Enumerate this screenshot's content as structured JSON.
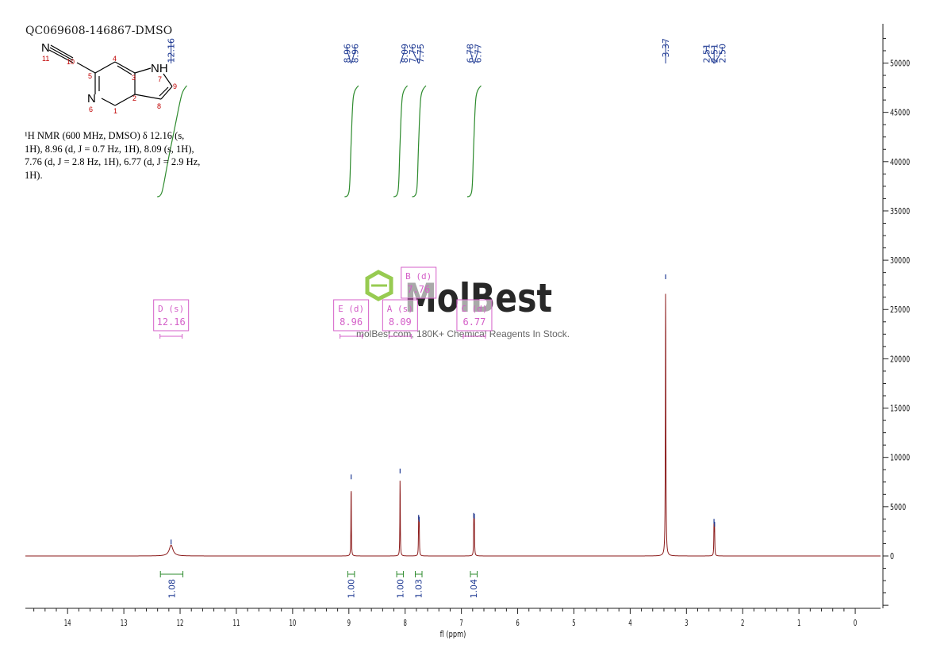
{
  "header": {
    "sample_id": "QC069608-146867-DMSO"
  },
  "description": {
    "lines": [
      "¹H NMR (600 MHz, DMSO) δ 12.16 (s,",
      "1H), 8.96 (d, J = 0.7 Hz, 1H), 8.09 (s, 1H),",
      "7.76 (d, J = 2.8 Hz, 1H), 6.77 (d, J = 2.9 Hz,",
      "1H)."
    ]
  },
  "structure": {
    "atoms": [
      {
        "label": "N",
        "num": "11"
      },
      {
        "label": "",
        "num": "10"
      },
      {
        "label": "",
        "num": "5"
      },
      {
        "label": "",
        "num": "4"
      },
      {
        "label": "",
        "num": "3"
      },
      {
        "label": "NH",
        "num": "7"
      },
      {
        "label": "",
        "num": "9"
      },
      {
        "label": "",
        "num": "8"
      },
      {
        "label": "",
        "num": "2"
      },
      {
        "label": "",
        "num": "1"
      },
      {
        "label": "N",
        "num": "6"
      }
    ]
  },
  "watermark": {
    "brand": "MolBest",
    "tagline": "molBest.com, 180K+ Chemical Reagents In Stock."
  },
  "colors": {
    "spectrum": "#8b1a1a",
    "peak_marker": "#1f3a93",
    "integral": "#2e8b2e",
    "multiplet_box": "#d45fc8",
    "axis": "#222222",
    "logo": "#8cc63f"
  },
  "chart_data": {
    "type": "line",
    "xlabel": "fl (ppm)",
    "x_reversed": true,
    "xlim": [
      -0.45,
      14.75
    ],
    "ylim": [
      -5000,
      53500
    ],
    "x_ticks": [
      14,
      13,
      12,
      11,
      10,
      9,
      8,
      7,
      6,
      5,
      4,
      3,
      2,
      1,
      0
    ],
    "y_ticks": [
      0,
      5000,
      10000,
      15000,
      20000,
      25000,
      30000,
      35000,
      40000,
      45000,
      50000
    ],
    "peaks": [
      {
        "ppm": 12.16,
        "height": 1100,
        "width": 0.04
      },
      {
        "ppm": 8.96,
        "height": 7700,
        "width": 0.004
      },
      {
        "ppm": 8.09,
        "height": 8300,
        "width": 0.004
      },
      {
        "ppm": 7.76,
        "height": 3600,
        "width": 0.004
      },
      {
        "ppm": 7.75,
        "height": 3400,
        "width": 0.004
      },
      {
        "ppm": 6.78,
        "height": 3800,
        "width": 0.004
      },
      {
        "ppm": 6.77,
        "height": 3700,
        "width": 0.004
      },
      {
        "ppm": 3.37,
        "height": 28000,
        "width": 0.005
      },
      {
        "ppm": 2.51,
        "height": 3200,
        "width": 0.004
      },
      {
        "ppm": 2.5,
        "height": 2900,
        "width": 0.004
      }
    ],
    "peak_labels": [
      {
        "text": "12.16",
        "ppm": 12.16
      },
      {
        "text": "8.96",
        "ppm": 8.96
      },
      {
        "text": "8.96",
        "ppm": 8.96
      },
      {
        "text": "8.09",
        "ppm": 8.09
      },
      {
        "text": "7.76",
        "ppm": 7.76
      },
      {
        "text": "7.75",
        "ppm": 7.75
      },
      {
        "text": "6.78",
        "ppm": 6.78
      },
      {
        "text": "6.77",
        "ppm": 6.77
      },
      {
        "text": "3.37",
        "ppm": 3.37
      },
      {
        "text": "2.51",
        "ppm": 2.51
      },
      {
        "text": "2.51",
        "ppm": 2.51
      },
      {
        "text": "2.50",
        "ppm": 2.5
      }
    ],
    "integrals": [
      {
        "from": 12.35,
        "to": 11.95,
        "value": "1.08"
      },
      {
        "from": 9.02,
        "to": 8.9,
        "value": "1.00"
      },
      {
        "from": 8.15,
        "to": 8.03,
        "value": "1.00"
      },
      {
        "from": 7.82,
        "to": 7.7,
        "value": "1.03"
      },
      {
        "from": 6.84,
        "to": 6.72,
        "value": "1.04"
      }
    ],
    "multiplets": [
      {
        "letter": "D",
        "mult": "(s)",
        "shift": "12.16",
        "ppm": 12.16
      },
      {
        "letter": "E",
        "mult": "(d)",
        "shift": "8.96",
        "ppm": 8.96
      },
      {
        "letter": "A",
        "mult": "(s)",
        "shift": "8.09",
        "ppm": 8.09
      },
      {
        "letter": "B",
        "mult": "(d)",
        "shift": "7.76",
        "ppm": 7.76
      },
      {
        "letter": "C",
        "mult": "(d)",
        "shift": "6.77",
        "ppm": 6.77
      }
    ]
  }
}
